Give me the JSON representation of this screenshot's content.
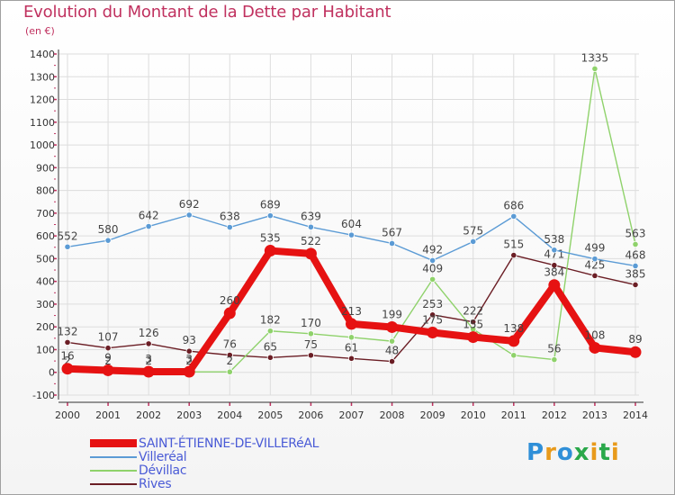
{
  "header": {
    "title": "Evolution du Montant de la Dette par Habitant",
    "unit": "(en €)"
  },
  "brand": {
    "text": "Proxiti",
    "colors": [
      "#2f8fd8",
      "#e89a1b",
      "#2f8fd8",
      "#2aa84a",
      "#e89a1b",
      "#2aa84a",
      "#e89a1b"
    ]
  },
  "chart_data": {
    "type": "line",
    "title": "Evolution du Montant de la Dette par Habitant",
    "ylabel": "(en €)",
    "xlabel": "",
    "x": [
      "2000",
      "2001",
      "2002",
      "2003",
      "2004",
      "2005",
      "2006",
      "2007",
      "2008",
      "2009",
      "2010",
      "2011",
      "2012",
      "2013",
      "2014"
    ],
    "ylim": [
      -100,
      1400
    ],
    "yticks": [
      -100,
      0,
      100,
      200,
      300,
      400,
      500,
      600,
      700,
      800,
      900,
      1000,
      1100,
      1200,
      1300,
      1400
    ],
    "grid": true,
    "legend_position": "bottom-left",
    "series": [
      {
        "name": "Rives",
        "color": "#6b1e25",
        "values": [
          132,
          107,
          126,
          93,
          76,
          65,
          75,
          61,
          48,
          253,
          222,
          515,
          471,
          425,
          385
        ],
        "labels": [
          "132",
          "107",
          "126",
          "93",
          "76",
          "65",
          "75",
          "61",
          "48",
          "253",
          "222",
          "515",
          "471",
          "425",
          "385"
        ]
      },
      {
        "name": "Dévillac",
        "color": "#8fd26b",
        "values": [
          2,
          2,
          2,
          2,
          2,
          182,
          170,
          154,
          137,
          409,
          190,
          75,
          56,
          1335,
          563
        ],
        "labels": [
          "2",
          "2",
          "2",
          "2",
          "2",
          "182",
          "170",
          "",
          "",
          "409",
          "",
          "",
          "56",
          "1335",
          "563"
        ]
      },
      {
        "name": "Villeréal",
        "color": "#5b9bd5",
        "values": [
          552,
          580,
          642,
          692,
          638,
          689,
          639,
          604,
          567,
          492,
          575,
          686,
          538,
          499,
          468
        ],
        "labels": [
          "552",
          "580",
          "642",
          "692",
          "638",
          "689",
          "639",
          "604",
          "567",
          "492",
          "575",
          "686",
          "538",
          "499",
          "468"
        ]
      },
      {
        "name": "SAINT-ÉTIENNE-DE-VILLERéAL",
        "color": "#e61212",
        "values": [
          16,
          9,
          3,
          3,
          260,
          535,
          522,
          213,
          199,
          175,
          155,
          138,
          384,
          108,
          89
        ],
        "labels": [
          "16",
          "9",
          "3",
          "3",
          "260",
          "535",
          "522",
          "213",
          "199",
          "175",
          "155",
          "138",
          "384",
          "108",
          "89"
        ]
      }
    ]
  },
  "legend": [
    {
      "label": "SAINT-ÉTIENNE-DE-VILLERéAL",
      "color": "#e61212",
      "thick": true
    },
    {
      "label": "Villeréal",
      "color": "#5b9bd5",
      "thick": false
    },
    {
      "label": "Dévillac",
      "color": "#8fd26b",
      "thick": false
    },
    {
      "label": "Rives",
      "color": "#6b1e25",
      "thick": false
    }
  ]
}
